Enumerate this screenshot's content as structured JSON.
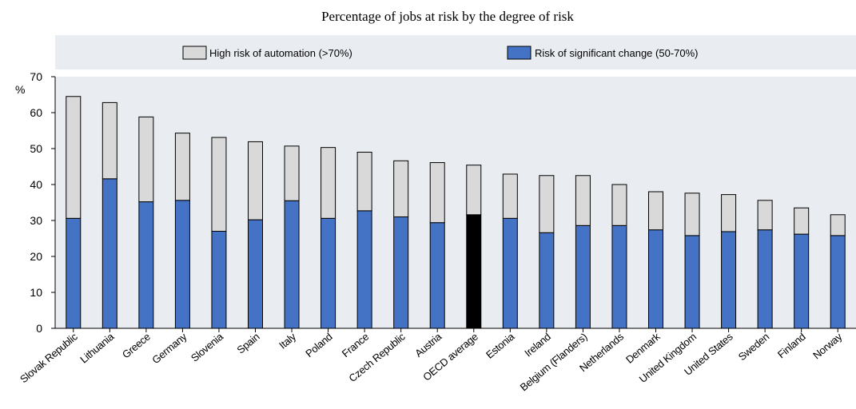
{
  "chart_data": {
    "type": "bar",
    "stacked": true,
    "title": "Percentage of jobs at risk by the degree of risk",
    "ylabel": "%",
    "ylim": [
      0,
      70
    ],
    "yticks": [
      0,
      10,
      20,
      30,
      40,
      50,
      60,
      70
    ],
    "grid": false,
    "legend_position": "top",
    "categories": [
      "Slovak Republic",
      "Lithuania",
      "Greece",
      "Germany",
      "Slovenia",
      "Spain",
      "Italy",
      "Poland",
      "France",
      "Czech Republic",
      "Austria",
      "OECD average",
      "Estonia",
      "Ireland",
      "Belgium (Flanders)",
      "Netherlands",
      "Denmark",
      "United Kingdom",
      "United States",
      "Sweden",
      "Finland",
      "Norway"
    ],
    "highlight_category": "OECD average",
    "highlight_color": "#000000",
    "series": [
      {
        "name": "Risk of significant change (50-70%)",
        "color": "#4472C4",
        "values": [
          30.6,
          41.6,
          35.2,
          35.6,
          27.0,
          30.2,
          35.5,
          30.6,
          32.7,
          31.0,
          29.4,
          31.6,
          30.6,
          26.6,
          28.6,
          28.6,
          27.4,
          25.8,
          26.9,
          27.4,
          26.2,
          25.8
        ]
      },
      {
        "name": "High risk of automation (>70%)",
        "color": "#D9D9D9",
        "values": [
          33.9,
          21.2,
          23.6,
          18.7,
          26.1,
          21.7,
          15.2,
          19.7,
          16.3,
          15.6,
          16.7,
          13.8,
          12.3,
          15.9,
          13.9,
          11.4,
          10.6,
          11.8,
          10.3,
          8.2,
          7.3,
          5.8
        ]
      }
    ]
  }
}
